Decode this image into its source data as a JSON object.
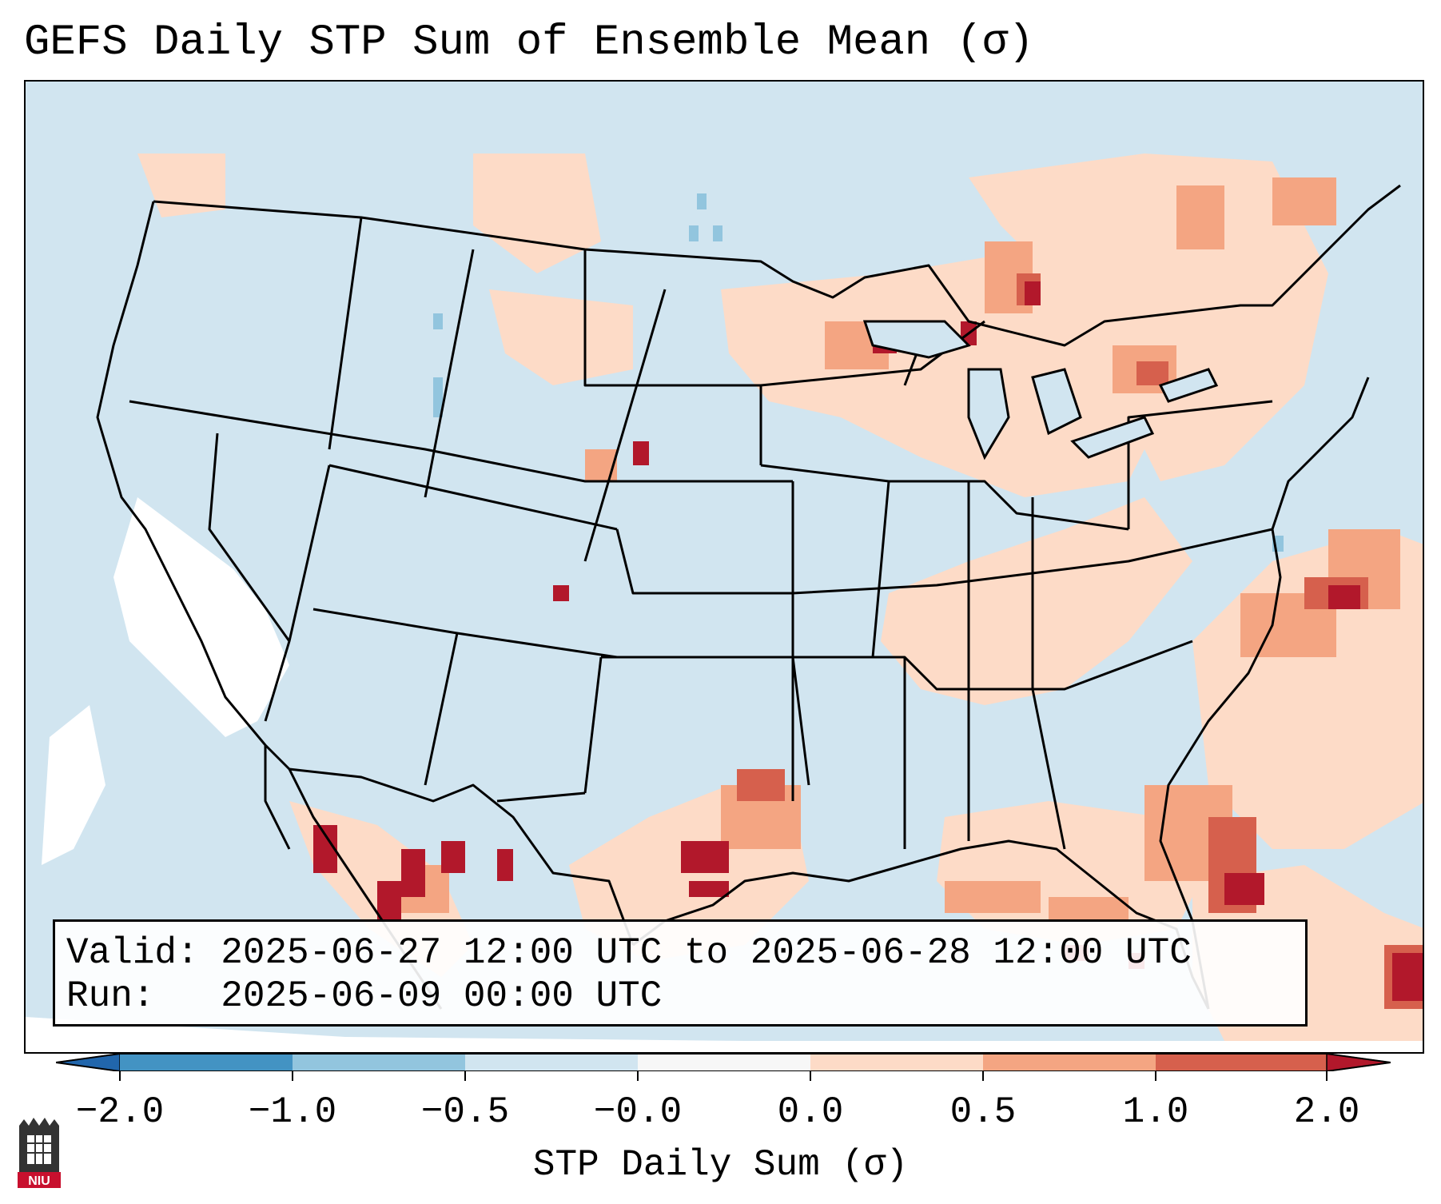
{
  "title": "GEFS Daily STP Sum of Ensemble Mean (σ)",
  "info": {
    "valid_line": "Valid: 2025-06-27 12:00 UTC to 2025-06-28 12:00 UTC",
    "run_line": "Run:   2025-06-09 00:00 UTC"
  },
  "colorbar": {
    "label": "STP Daily Sum (σ)",
    "ticks": [
      "−2.0",
      "−1.0",
      "−0.5",
      "−0.0",
      "0.0",
      "0.5",
      "1.0",
      "2.0"
    ],
    "colors": {
      "extend_low": "#2166ac",
      "bin_n2_n1": "#4393c3",
      "bin_n1_n05": "#92c5de",
      "bin_n05_n0": "#d1e5f0",
      "bin_n0_0": "#f7f7f7",
      "bin_0_05": "#fddbc7",
      "bin_05_1": "#f4a582",
      "bin_1_2": "#d6604d",
      "extend_high": "#b2182b"
    }
  },
  "logo": {
    "icon": "niu-castle-icon",
    "text": "NIU"
  }
}
